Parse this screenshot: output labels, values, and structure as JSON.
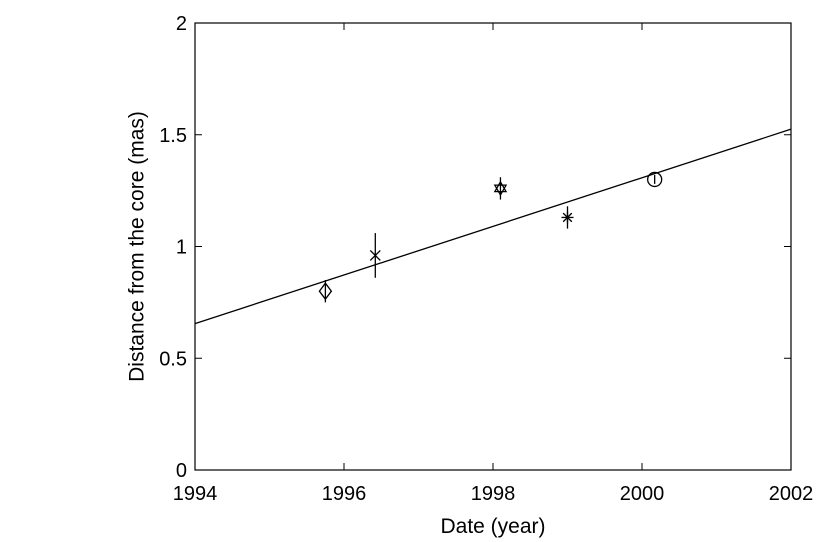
{
  "chart_data": {
    "type": "scatter",
    "xlabel": "Date (year)",
    "ylabel": "Distance from the core (mas)",
    "xlim": [
      1994,
      2002
    ],
    "ylim": [
      0,
      2
    ],
    "x_ticks": [
      1994,
      1996,
      1998,
      2000,
      2002
    ],
    "y_ticks": [
      0,
      0.5,
      1,
      1.5,
      2
    ],
    "x_tick_labels": [
      "1994",
      "1996",
      "1998",
      "2000",
      "2002"
    ],
    "y_tick_labels": [
      "0",
      "0.5",
      "1",
      "1.5",
      "2"
    ],
    "grid": false,
    "points": [
      {
        "x": 1995.75,
        "y": 0.8,
        "yerr": 0.05,
        "marker": "diamond"
      },
      {
        "x": 1996.42,
        "y": 0.96,
        "yerr": 0.1,
        "marker": "x"
      },
      {
        "x": 1998.1,
        "y": 1.26,
        "yerr": 0.05,
        "marker": "hexagram"
      },
      {
        "x": 1999.0,
        "y": 1.13,
        "yerr": 0.05,
        "marker": "asterisk"
      },
      {
        "x": 2000.17,
        "y": 1.3,
        "yerr": 0.02,
        "marker": "circle"
      }
    ],
    "fit_line": {
      "x": [
        1994,
        2002
      ],
      "y": [
        0.655,
        1.525
      ]
    }
  }
}
